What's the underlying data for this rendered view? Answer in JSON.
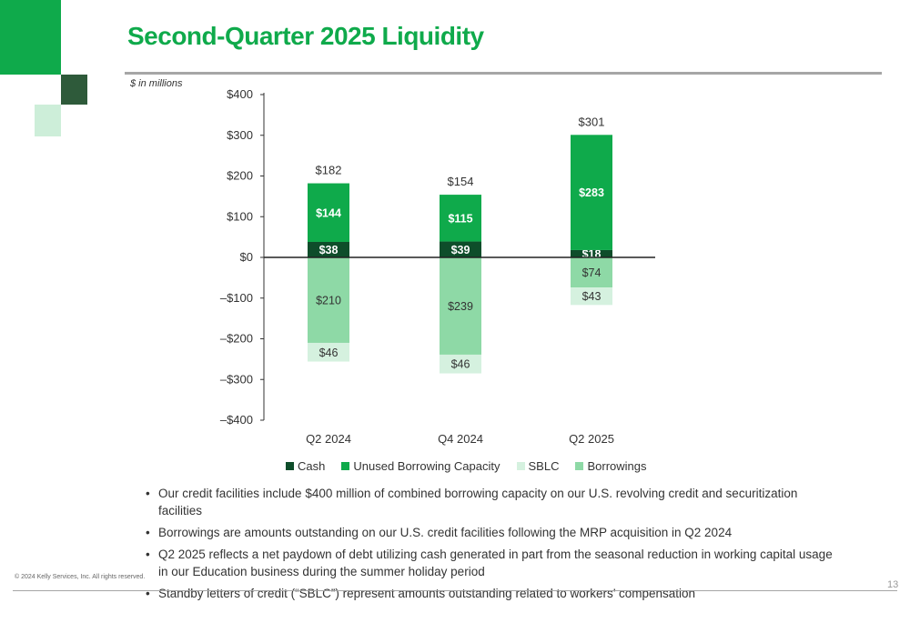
{
  "title": "Second-Quarter 2025 Liquidity",
  "units_note": "$ in millions",
  "colors": {
    "title": "#0faa4b",
    "cash": "#0e4d2a",
    "unused": "#0faa4b",
    "borrowings": "#8ed9a6",
    "sblc": "#d5f1df",
    "deco_green": "#0faa4b",
    "deco_dark": "#2e5a3a",
    "deco_light": "#cdeed9"
  },
  "chart_data": {
    "type": "bar",
    "stacked": true,
    "categories": [
      "Q2 2024",
      "Q4 2024",
      "Q2 2025"
    ],
    "ylim": [
      -400,
      400
    ],
    "yticks": [
      400,
      300,
      200,
      100,
      0,
      -100,
      -200,
      -300,
      -400
    ],
    "ytick_labels": [
      "$400",
      "$300",
      "$200",
      "$100",
      "$0",
      "–$100",
      "–$200",
      "–$300",
      "–$400"
    ],
    "legend_position": "bottom",
    "series": [
      {
        "name": "Cash",
        "color": "#0e4d2a",
        "values": [
          38,
          39,
          18
        ],
        "labels": [
          "$38",
          "$39",
          "$18"
        ],
        "label_color": "#ffffff"
      },
      {
        "name": "Unused Borrowing Capacity",
        "color": "#0faa4b",
        "values": [
          144,
          115,
          283
        ],
        "labels": [
          "$144",
          "$115",
          "$283"
        ],
        "label_color": "#ffffff"
      },
      {
        "name": "SBLC",
        "color": "#d5f1df",
        "values": [
          -46,
          -46,
          -43
        ],
        "labels": [
          "$46",
          "$46",
          "$43"
        ],
        "label_color": "#333333"
      },
      {
        "name": "Borrowings",
        "color": "#8ed9a6",
        "values": [
          -210,
          -239,
          -74
        ],
        "labels": [
          "$210",
          "$239",
          "$74"
        ],
        "label_color": "#333333"
      }
    ],
    "totals": [
      "$182",
      "$154",
      "$301"
    ]
  },
  "bullets": [
    "Our credit facilities include $400 million of combined borrowing capacity on our U.S. revolving credit and securitization facilities",
    "Borrowings are amounts outstanding on our U.S. credit facilities following the MRP acquisition in Q2 2024",
    "Q2 2025 reflects a net paydown of debt utilizing cash generated in part from the seasonal reduction in working capital usage in our Education business during the summer holiday period",
    "Standby letters of credit (“SBLC”) represent amounts outstanding related to workers’ compensation"
  ],
  "footer": {
    "copyright": "© 2024 Kelly Services, Inc. All rights reserved.",
    "page_number": "13"
  }
}
